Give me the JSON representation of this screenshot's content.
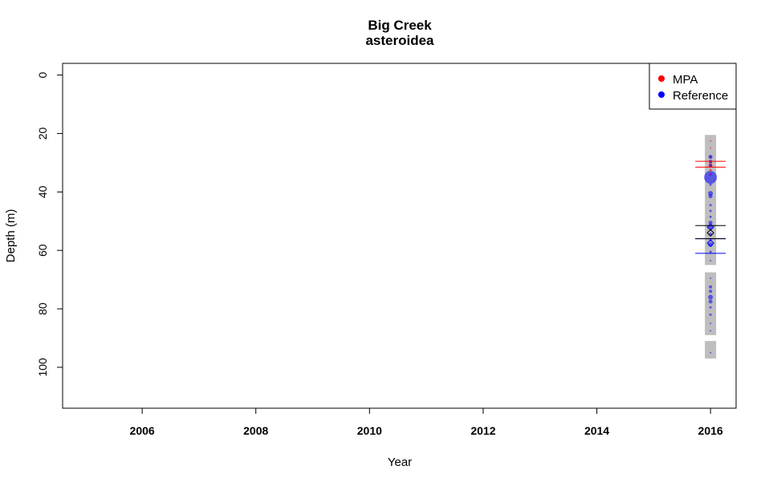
{
  "chart_data": {
    "type": "scatter",
    "title": "Big Creek",
    "subtitle": "asteroidea",
    "xlabel": "Year",
    "ylabel": "Depth (m)",
    "xlim": [
      2004.6,
      2016.45
    ],
    "ylim": [
      114,
      -4
    ],
    "y_reversed": true,
    "grid": false,
    "x_ticks": [
      "2006",
      "2008",
      "2010",
      "2012",
      "2014",
      "2016"
    ],
    "y_ticks": [
      "0",
      "20",
      "40",
      "60",
      "80",
      "100"
    ],
    "legend": {
      "placement": "top-right",
      "entries": [
        {
          "name": "MPA",
          "color": "#ff0000"
        },
        {
          "name": "Reference",
          "color": "#0000ff"
        }
      ]
    },
    "depth_ranges": [
      {
        "x": 2016,
        "y0": 20.5,
        "y1": 65
      },
      {
        "x": 2016,
        "y0": 67.5,
        "y1": 89
      },
      {
        "x": 2016,
        "y0": 91,
        "y1": 97
      }
    ],
    "series": [
      {
        "name": "MPA",
        "color": "#ff0000",
        "points": [
          {
            "x": 2016,
            "y": 22.5,
            "size": 1
          },
          {
            "x": 2016,
            "y": 25,
            "size": 1
          },
          {
            "x": 2016,
            "y": 28,
            "size": 1.5
          },
          {
            "x": 2016,
            "y": 30,
            "size": 2
          },
          {
            "x": 2016,
            "y": 31,
            "size": 2.5
          },
          {
            "x": 2016,
            "y": 32.5,
            "size": 1.5
          },
          {
            "x": 2016,
            "y": 34,
            "size": 1.5
          }
        ],
        "mean_lines": [
          29.5,
          31.5
        ]
      },
      {
        "name": "Reference",
        "color": "#0000ff",
        "points": [
          {
            "x": 2016,
            "y": 28,
            "size": 2.5
          },
          {
            "x": 2016,
            "y": 29.5,
            "size": 2
          },
          {
            "x": 2016,
            "y": 31,
            "size": 2
          },
          {
            "x": 2016,
            "y": 35,
            "size": 8
          },
          {
            "x": 2016,
            "y": 37.5,
            "size": 1.5
          },
          {
            "x": 2016,
            "y": 40.5,
            "size": 3
          },
          {
            "x": 2016,
            "y": 41.5,
            "size": 2.5
          },
          {
            "x": 2016,
            "y": 44.5,
            "size": 1.5
          },
          {
            "x": 2016,
            "y": 46.5,
            "size": 1.5
          },
          {
            "x": 2016,
            "y": 48.5,
            "size": 1.5
          },
          {
            "x": 2016,
            "y": 50.5,
            "size": 2.5
          },
          {
            "x": 2016,
            "y": 52,
            "size": 3
          },
          {
            "x": 2016,
            "y": 54.5,
            "size": 2
          },
          {
            "x": 2016,
            "y": 56.5,
            "size": 1.5
          },
          {
            "x": 2016,
            "y": 58,
            "size": 3
          },
          {
            "x": 2016,
            "y": 60.5,
            "size": 1.5
          },
          {
            "x": 2016,
            "y": 63.5,
            "size": 1
          },
          {
            "x": 2016,
            "y": 69.5,
            "size": 1
          },
          {
            "x": 2016,
            "y": 72.5,
            "size": 2
          },
          {
            "x": 2016,
            "y": 74,
            "size": 2
          },
          {
            "x": 2016,
            "y": 76,
            "size": 3
          },
          {
            "x": 2016,
            "y": 77.5,
            "size": 2.5
          },
          {
            "x": 2016,
            "y": 79.5,
            "size": 1.5
          },
          {
            "x": 2016,
            "y": 82,
            "size": 1.5
          },
          {
            "x": 2016,
            "y": 85,
            "size": 1
          },
          {
            "x": 2016,
            "y": 87.5,
            "size": 1
          },
          {
            "x": 2016,
            "y": 95,
            "size": 1
          }
        ],
        "mean_lines": [
          56,
          61
        ]
      },
      {
        "color": "#000000",
        "points": [
          {
            "x": 2016,
            "y": 54,
            "size": 4
          }
        ],
        "mean_lines": [
          51.5,
          56
        ]
      }
    ]
  }
}
